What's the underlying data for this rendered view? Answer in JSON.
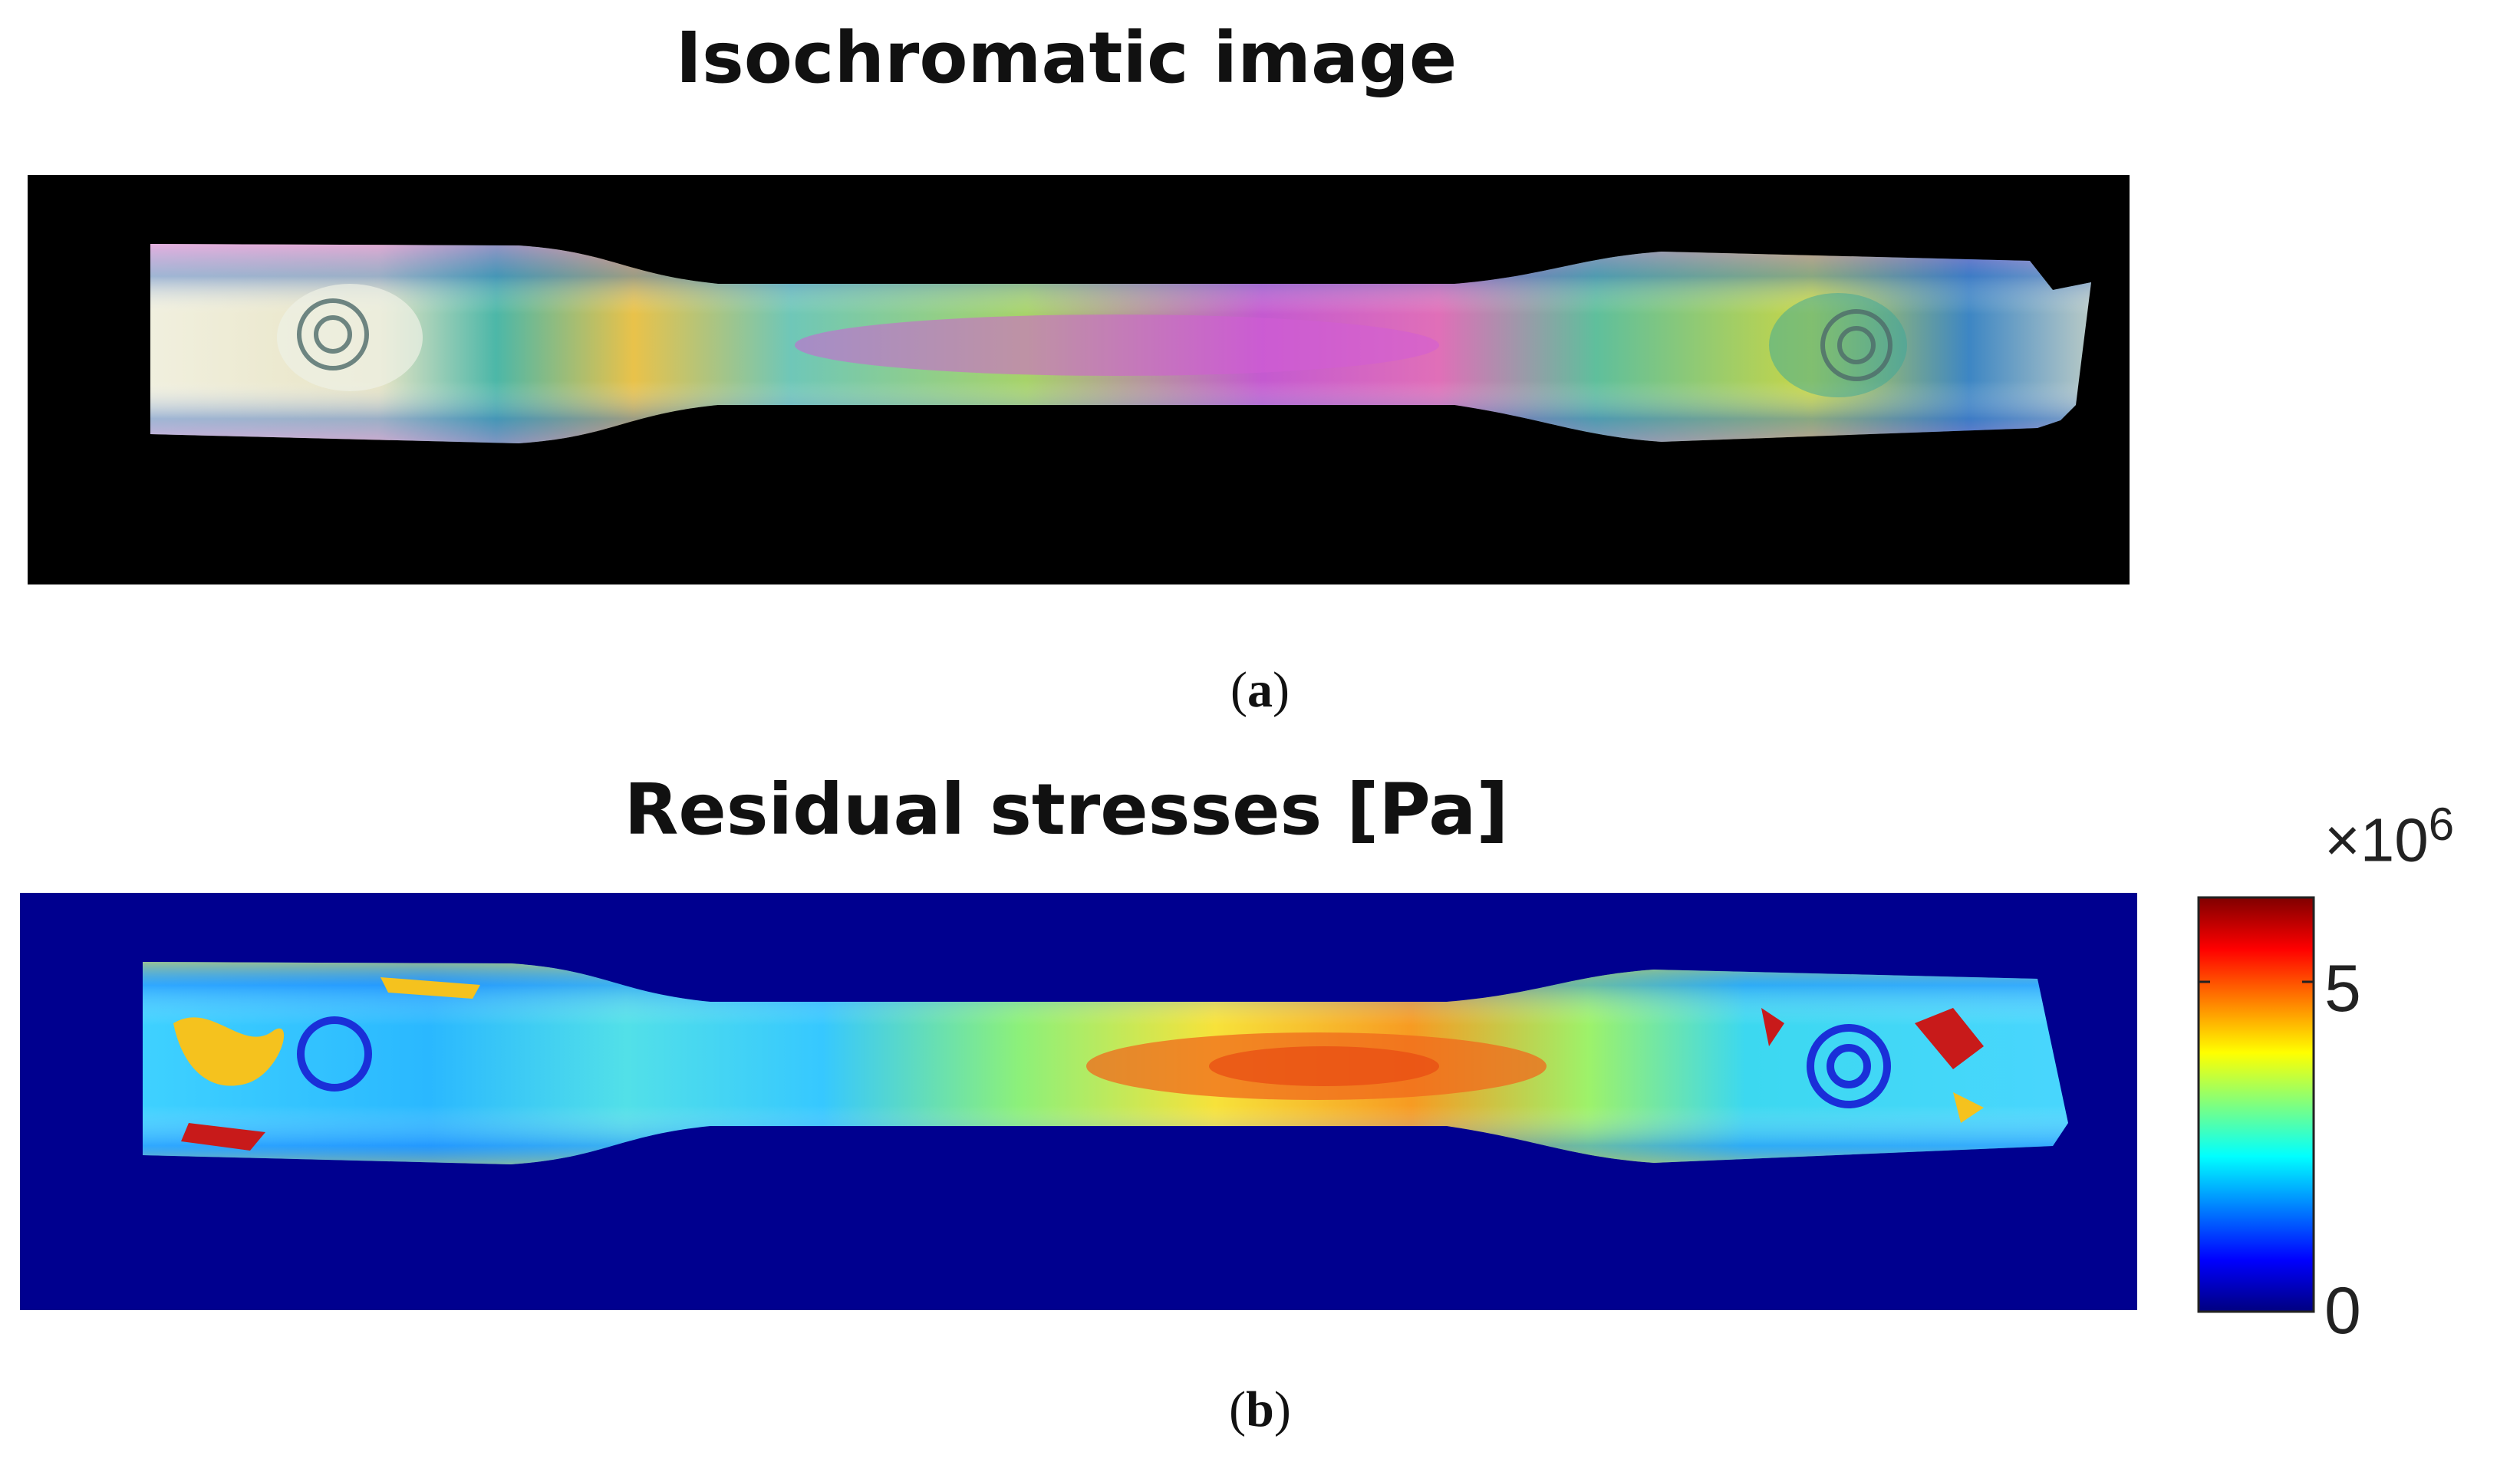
{
  "panel_a": {
    "title": "Isochromatic image",
    "caption_open": "(",
    "caption_letter": "a",
    "caption_close": ")"
  },
  "panel_b": {
    "title": "Residual stresses [Pa]",
    "caption_open": "(",
    "caption_letter": "b",
    "caption_close": ")"
  },
  "colorbar": {
    "multiplier_prefix": "×10",
    "multiplier_exponent": "6",
    "ticks": [
      "5",
      "0"
    ],
    "colormap": "jet",
    "range": [
      0,
      6.3
    ]
  },
  "colors": {
    "background_a": "#000000",
    "background_b": "#00008f"
  }
}
